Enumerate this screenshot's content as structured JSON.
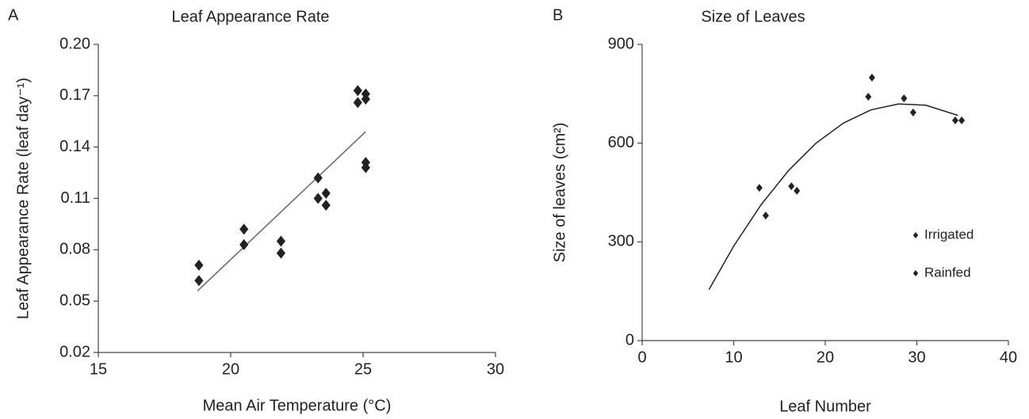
{
  "chart_data": [
    {
      "type": "scatter",
      "panel": "A",
      "title": "Leaf Appearance Rate",
      "x_label": "Mean Air Temperature (°C)",
      "y_label": "Leaf Appearance Rate (leaf day⁻¹)",
      "xlim": [
        15,
        30
      ],
      "xticks": [
        15,
        20,
        25,
        30
      ],
      "ylim": [
        0.02,
        0.2
      ],
      "yticks": [
        0.02,
        0.05,
        0.08,
        0.11,
        0.14,
        0.17,
        {
          "value": 0.2,
          "label": "0.20"
        }
      ],
      "series": [
        {
          "color": "#222222",
          "x": [
            18.8,
            18.8,
            20.5,
            20.5,
            21.9,
            21.9,
            23.3,
            23.3,
            23.6,
            23.6,
            24.8,
            24.8,
            25.1,
            25.1,
            25.1,
            25.1
          ],
          "values": [
            0.071,
            0.062,
            0.092,
            0.083,
            0.085,
            0.078,
            0.122,
            0.11,
            0.113,
            0.106,
            0.173,
            0.166,
            0.171,
            0.168,
            0.131,
            0.128
          ]
        }
      ],
      "trendline": {
        "color": "#666666",
        "x": [
          18.75,
          25.1
        ],
        "values": [
          0.056,
          0.149
        ]
      }
    },
    {
      "type": "scatter",
      "panel": "B",
      "title": "Size of Leaves",
      "x_label": "Leaf Number",
      "y_label": "Size of leaves (cm²)",
      "xlim": [
        0,
        40
      ],
      "xticks": [
        0,
        10,
        20,
        30,
        40
      ],
      "ylim": [
        0,
        900
      ],
      "yticks": [
        0,
        300,
        600,
        900
      ],
      "series": [
        {
          "name": "Irrigated",
          "color": "#222222",
          "x": [
            12.8,
            16.3,
            24.7,
            28.6,
            34.2
          ],
          "values": [
            464,
            469,
            741,
            736,
            669
          ]
        },
        {
          "name": "Rainfed",
          "color": "#222222",
          "x": [
            13.5,
            16.9,
            25.1,
            29.6,
            34.9
          ],
          "values": [
            380,
            455,
            799,
            693,
            669
          ]
        }
      ],
      "trendline": {
        "color": "#222222",
        "x": [
          7.3,
          10,
          13,
          16,
          19,
          22,
          25,
          28,
          31,
          34.5
        ],
        "values": [
          155,
          287,
          413,
          517,
          600,
          661,
          701,
          719,
          715,
          684
        ]
      }
    }
  ]
}
